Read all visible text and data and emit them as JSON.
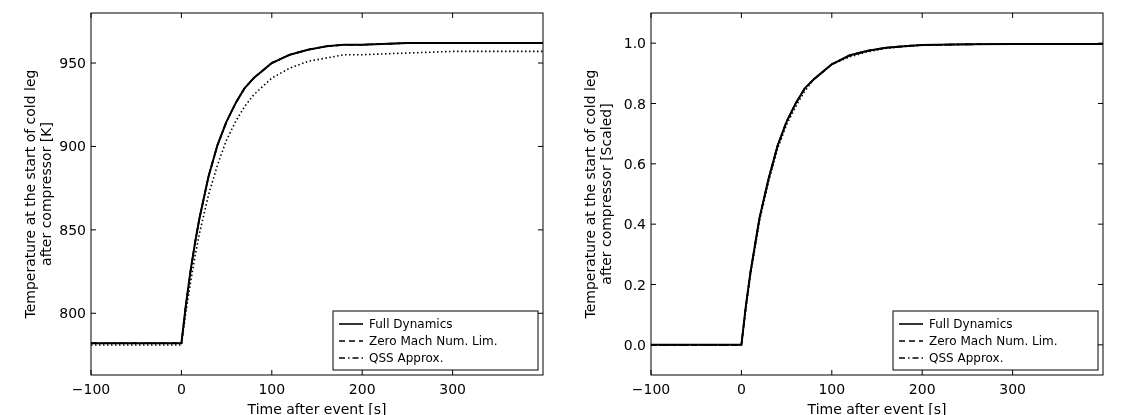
{
  "chart_data": [
    {
      "type": "line",
      "xlabel": "Time after event [s]",
      "ylabel": "Temperature at the start of cold leg\nafter compressor [K]",
      "xlim": [
        -100,
        400
      ],
      "xticks": [
        {
          "value": -100,
          "label": "−100"
        },
        0,
        100,
        200,
        300
      ],
      "ylim": [
        763,
        980
      ],
      "yticks": [
        800,
        850,
        900,
        950
      ],
      "legend": "bottom right",
      "grid": false,
      "x": [
        -100,
        0,
        5,
        10,
        15,
        20,
        30,
        40,
        50,
        60,
        70,
        80,
        100,
        120,
        140,
        160,
        180,
        200,
        250,
        300,
        350,
        400
      ],
      "series": [
        {
          "color": "#000000",
          "line_style": "dotted",
          "values": [
            781,
            781,
            801,
            818,
            834,
            848,
            871,
            889,
            904,
            915,
            924,
            931,
            941,
            947,
            951,
            953,
            955,
            955,
            956,
            957,
            957,
            957
          ]
        },
        {
          "name": "Full Dynamics",
          "color": "#000000",
          "line_style": "solid",
          "values": [
            782,
            782,
            805,
            825,
            842,
            857,
            882,
            901,
            915,
            926,
            935,
            941,
            950,
            955,
            958,
            960,
            961,
            961,
            962,
            962,
            962,
            962
          ]
        },
        {
          "name": "Zero Mach Num. Lim.",
          "color": "#000000",
          "line_style": "dashed",
          "values": [
            782,
            782,
            805,
            825,
            842,
            857,
            882,
            901,
            915,
            926,
            935,
            941,
            950,
            955,
            958,
            960,
            961,
            961,
            962,
            962,
            962,
            962
          ]
        },
        {
          "name": "QSS Approx.",
          "color": "#000000",
          "line_style": "dashdot",
          "values": [
            782,
            782,
            805,
            825,
            842,
            857,
            882,
            901,
            915,
            926,
            935,
            941,
            950,
            955,
            958,
            960,
            961,
            961,
            962,
            962,
            962,
            962
          ]
        }
      ]
    },
    {
      "type": "line",
      "xlabel": "Time after event [s]",
      "ylabel": "Temperature at the start of cold leg\nafter compressor [Scaled]",
      "xlim": [
        -100,
        400
      ],
      "xticks": [
        {
          "value": -100,
          "label": "−100"
        },
        0,
        100,
        200,
        300
      ],
      "ylim": [
        -0.1,
        1.1
      ],
      "yticks": [
        {
          "value": 0,
          "label": "0.0"
        },
        0.2,
        0.4,
        0.6,
        0.8,
        {
          "value": 1,
          "label": "1.0"
        }
      ],
      "legend": "bottom right",
      "grid": false,
      "x": [
        -100,
        0,
        5,
        10,
        15,
        20,
        30,
        40,
        50,
        60,
        70,
        80,
        100,
        120,
        140,
        160,
        180,
        200,
        250,
        300,
        350,
        400
      ],
      "series": [
        {
          "color": "#000000",
          "line_style": "dotted",
          "values": [
            0,
            0,
            0.12,
            0.23,
            0.32,
            0.41,
            0.54,
            0.65,
            0.73,
            0.79,
            0.84,
            0.88,
            0.93,
            0.955,
            0.972,
            0.983,
            0.989,
            0.993,
            0.996,
            0.997,
            0.997,
            0.997
          ]
        },
        {
          "name": "Full Dynamics",
          "color": "#000000",
          "line_style": "solid",
          "values": [
            0,
            0,
            0.13,
            0.24,
            0.33,
            0.42,
            0.55,
            0.66,
            0.74,
            0.8,
            0.85,
            0.88,
            0.93,
            0.96,
            0.975,
            0.985,
            0.99,
            0.994,
            0.996,
            0.997,
            0.997,
            0.997
          ]
        },
        {
          "name": "Zero Mach Num. Lim.",
          "color": "#000000",
          "line_style": "dashed",
          "values": [
            0,
            0,
            0.13,
            0.24,
            0.33,
            0.42,
            0.55,
            0.66,
            0.74,
            0.8,
            0.85,
            0.88,
            0.93,
            0.96,
            0.975,
            0.985,
            0.99,
            0.994,
            0.996,
            0.997,
            0.997,
            0.997
          ]
        },
        {
          "name": "QSS Approx.",
          "color": "#000000",
          "line_style": "dashdot",
          "values": [
            0,
            0,
            0.13,
            0.24,
            0.33,
            0.42,
            0.55,
            0.66,
            0.74,
            0.8,
            0.85,
            0.88,
            0.93,
            0.96,
            0.975,
            0.985,
            0.99,
            0.994,
            0.996,
            0.997,
            0.997,
            0.997
          ]
        }
      ]
    }
  ]
}
